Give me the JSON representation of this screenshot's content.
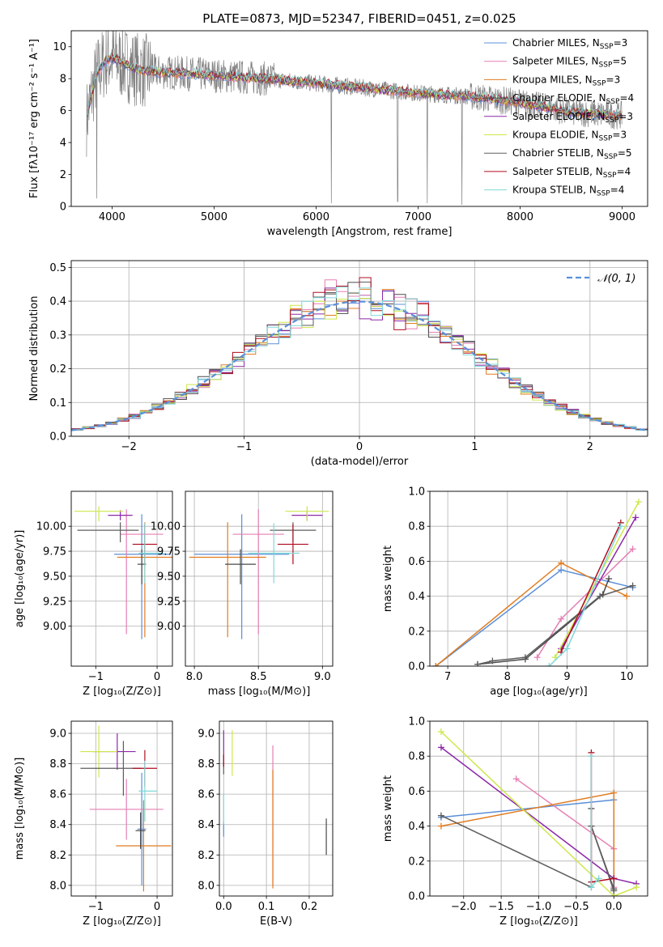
{
  "title": "PLATE=0873, MJD=52347, FIBERID=0451, z=0.025",
  "models": [
    {
      "label": "Chabrier MILES, N",
      "sub": "SSP",
      "suffix": "=3",
      "color": "#5b8fd9"
    },
    {
      "label": "Salpeter MILES, N",
      "sub": "SSP",
      "suffix": "=5",
      "color": "#e57fb3"
    },
    {
      "label": "Kroupa MILES, N",
      "sub": "SSP",
      "suffix": "=3",
      "color": "#e07c20"
    },
    {
      "label": "Chabrier ELODIE, N",
      "sub": "SSP",
      "suffix": "=4",
      "color": "#4a4a4a"
    },
    {
      "label": "Salpeter ELODIE, N",
      "sub": "SSP",
      "suffix": "=3",
      "color": "#8d28a8"
    },
    {
      "label": "Kroupa ELODIE, N",
      "sub": "SSP",
      "suffix": "=3",
      "color": "#cde84b"
    },
    {
      "label": "Chabrier STELIB, N",
      "sub": "SSP",
      "suffix": "=5",
      "color": "#5e5e5e"
    },
    {
      "label": "Salpeter STELIB, N",
      "sub": "SSP",
      "suffix": "=4",
      "color": "#b00d1f"
    },
    {
      "label": "Kroupa STELIB, N",
      "sub": "SSP",
      "suffix": "=4",
      "color": "#7fd8d8"
    }
  ],
  "chart_data": [
    {
      "id": "spectrum",
      "type": "line",
      "xlabel": "wavelength [Angstrom, rest frame]",
      "ylabel": "Flux [fλ10⁻¹⁷ erg cm⁻² s⁻¹ A⁻¹]",
      "xlim": [
        3600,
        9250
      ],
      "ylim": [
        0,
        11
      ],
      "xticks": [
        4000,
        5000,
        6000,
        7000,
        8000,
        9000
      ],
      "yticks": [
        0,
        2,
        4,
        6,
        8,
        10
      ],
      "observed_color": "#808080",
      "continuum": {
        "x": [
          3750,
          3800,
          3850,
          3900,
          3950,
          4000,
          4100,
          4200,
          4300,
          4500,
          4800,
          5000,
          5500,
          6000,
          6500,
          7000,
          7500,
          8000,
          8500,
          9000
        ],
        "y": [
          5.5,
          7.0,
          8.3,
          8.8,
          9.2,
          9.3,
          9.0,
          8.7,
          8.5,
          8.4,
          8.3,
          8.2,
          8.0,
          7.7,
          7.4,
          7.1,
          6.9,
          6.5,
          5.9,
          5.7
        ]
      },
      "spikes_down": [
        [
          6150,
          0.2
        ],
        [
          6800,
          0.3
        ],
        [
          7090,
          0.2
        ],
        [
          7430,
          0.1
        ],
        [
          3850,
          0.5
        ]
      ]
    },
    {
      "id": "residuals",
      "type": "histogram",
      "xlabel": "(data-model)/error",
      "ylabel": "Normed distribution",
      "xlim": [
        -2.5,
        2.5
      ],
      "ylim": [
        0,
        0.52
      ],
      "xticks": [
        -2,
        -1,
        0,
        1,
        2
      ],
      "yticks": [
        0.0,
        0.1,
        0.2,
        0.3,
        0.4,
        0.5
      ],
      "reference": {
        "label": "𝒩(0, 1)",
        "mu": 0,
        "sigma": 1,
        "color": "#5b8fd9"
      },
      "bin_width": 0.1
    },
    {
      "id": "age_vs_Z",
      "type": "errorbar",
      "xlabel": "Z [log₁₀(Z/Z⊙)]",
      "ylabel": "age  [log₁₀(age/yr)]",
      "xlim": [
        -1.4,
        0.25
      ],
      "ylim": [
        8.6,
        10.35
      ],
      "xticks": [
        -1,
        0
      ],
      "yticks": [
        9.0,
        9.25,
        9.5,
        9.75,
        10.0
      ],
      "points": [
        {
          "m": 0,
          "x": -0.25,
          "y": 9.72,
          "xerr": [
            0.45,
            0.45
          ],
          "yerr": [
            0.85,
            0.4
          ]
        },
        {
          "m": 1,
          "x": -0.5,
          "y": 9.92,
          "xerr": [
            0.1,
            0.6
          ],
          "yerr": [
            1.0,
            0.25
          ]
        },
        {
          "m": 2,
          "x": -0.2,
          "y": 9.69,
          "xerr": [
            0.45,
            0.45
          ],
          "yerr": [
            0.8,
            0.35
          ]
        },
        {
          "m": 3,
          "x": -0.25,
          "y": 9.62,
          "xerr": [
            0.07,
            0.07
          ],
          "yerr": [
            0.2,
            0.15
          ]
        },
        {
          "m": 4,
          "x": -0.6,
          "y": 10.11,
          "xerr": [
            0.2,
            0.2
          ],
          "yerr": [
            0.05,
            0.05
          ]
        },
        {
          "m": 5,
          "x": -0.95,
          "y": 10.15,
          "xerr": [
            0.4,
            0.4
          ],
          "yerr": [
            0.1,
            0.05
          ]
        },
        {
          "m": 6,
          "x": -0.6,
          "y": 9.96,
          "xerr": [
            0.7,
            0.3
          ],
          "yerr": [
            0.12,
            0.08
          ]
        },
        {
          "m": 7,
          "x": -0.2,
          "y": 9.82,
          "xerr": [
            0.2,
            0.2
          ],
          "yerr": [
            0.2,
            0.2
          ]
        },
        {
          "m": 8,
          "x": -0.2,
          "y": 9.73,
          "xerr": [
            0.1,
            0.3
          ],
          "yerr": [
            0.3,
            0.3
          ]
        }
      ]
    },
    {
      "id": "age_vs_mass",
      "type": "errorbar",
      "xlabel": "mass [log₁₀(M/M⊙)]",
      "ylabel": "",
      "xlim": [
        7.93,
        9.08
      ],
      "ylim": [
        8.6,
        10.35
      ],
      "xticks": [
        8.0,
        8.5,
        9.0
      ],
      "yticks": [
        9.0,
        9.25,
        9.5,
        9.75,
        10.0
      ],
      "points": [
        {
          "m": 0,
          "x": 8.37,
          "y": 9.72,
          "xerr": [
            0.37,
            0.37
          ],
          "yerr": [
            0.85,
            0.4
          ]
        },
        {
          "m": 1,
          "x": 8.5,
          "y": 9.92,
          "xerr": [
            0.2,
            0.2
          ],
          "yerr": [
            1.0,
            0.25
          ]
        },
        {
          "m": 2,
          "x": 8.26,
          "y": 9.69,
          "xerr": [
            0.3,
            0.3
          ],
          "yerr": [
            0.8,
            0.35
          ]
        },
        {
          "m": 3,
          "x": 8.36,
          "y": 9.62,
          "xerr": [
            0.12,
            0.12
          ],
          "yerr": [
            0.2,
            0.15
          ]
        },
        {
          "m": 4,
          "x": 8.88,
          "y": 10.11,
          "xerr": [
            0.12,
            0.12
          ],
          "yerr": [
            0.05,
            0.05
          ]
        },
        {
          "m": 5,
          "x": 8.88,
          "y": 10.15,
          "xerr": [
            0.17,
            0.17
          ],
          "yerr": [
            0.1,
            0.05
          ]
        },
        {
          "m": 6,
          "x": 8.77,
          "y": 9.96,
          "xerr": [
            0.18,
            0.18
          ],
          "yerr": [
            0.12,
            0.08
          ]
        },
        {
          "m": 7,
          "x": 8.77,
          "y": 9.82,
          "xerr": [
            0.12,
            0.12
          ],
          "yerr": [
            0.2,
            0.2
          ]
        },
        {
          "m": 8,
          "x": 8.62,
          "y": 9.73,
          "xerr": [
            0.2,
            0.2
          ],
          "yerr": [
            0.3,
            0.3
          ]
        }
      ]
    },
    {
      "id": "weight_vs_age",
      "type": "line",
      "xlabel": "age  [log₁₀(age/yr)]",
      "ylabel": "mass weight",
      "xlim": [
        6.7,
        10.35
      ],
      "ylim": [
        0,
        1.0
      ],
      "xticks": [
        7,
        8,
        9,
        10
      ],
      "yticks": [
        0.0,
        0.2,
        0.4,
        0.6,
        0.8,
        1.0
      ],
      "series": [
        {
          "m": 0,
          "x": [
            6.8,
            8.9,
            10.1
          ],
          "y": [
            0.0,
            0.55,
            0.45
          ]
        },
        {
          "m": 1,
          "x": [
            8.5,
            8.9,
            10.1
          ],
          "y": [
            0.05,
            0.27,
            0.67
          ]
        },
        {
          "m": 2,
          "x": [
            6.8,
            8.9,
            10.0
          ],
          "y": [
            0.0,
            0.59,
            0.4
          ]
        },
        {
          "m": 3,
          "x": [
            7.5,
            8.3,
            9.6,
            9.7
          ],
          "y": [
            0.01,
            0.04,
            0.41,
            0.5
          ]
        },
        {
          "m": 4,
          "x": [
            8.9,
            10.15
          ],
          "y": [
            0.1,
            0.85
          ]
        },
        {
          "m": 5,
          "x": [
            8.8,
            10.2
          ],
          "y": [
            0.05,
            0.94
          ]
        },
        {
          "m": 6,
          "x": [
            7.5,
            7.75,
            8.3,
            9.55,
            10.1
          ],
          "y": [
            0.01,
            0.03,
            0.05,
            0.4,
            0.46
          ]
        },
        {
          "m": 7,
          "x": [
            8.9,
            9.9
          ],
          "y": [
            0.08,
            0.82
          ]
        },
        {
          "m": 8,
          "x": [
            8.7,
            9.0,
            9.9
          ],
          "y": [
            0.0,
            0.1,
            0.8
          ]
        }
      ]
    },
    {
      "id": "mass_vs_Z",
      "type": "errorbar",
      "xlabel": "Z [log₁₀(Z/Z⊙)]",
      "ylabel": "mass [log₁₀(M/M⊙)]",
      "xlim": [
        -1.4,
        0.25
      ],
      "ylim": [
        7.93,
        9.08
      ],
      "xticks": [
        -1,
        0
      ],
      "yticks": [
        8.0,
        8.2,
        8.4,
        8.6,
        8.8,
        9.0
      ],
      "points": [
        {
          "m": 0,
          "x": -0.25,
          "y": 8.37,
          "xerr": [
            0.07,
            0.07
          ],
          "yerr": [
            0.37,
            0.37
          ]
        },
        {
          "m": 1,
          "x": -0.5,
          "y": 8.5,
          "xerr": [
            0.6,
            0.6
          ],
          "yerr": [
            0.2,
            0.2
          ]
        },
        {
          "m": 2,
          "x": -0.22,
          "y": 8.26,
          "xerr": [
            0.45,
            0.45
          ],
          "yerr": [
            0.3,
            0.3
          ]
        },
        {
          "m": 3,
          "x": -0.27,
          "y": 8.36,
          "xerr": [
            0.08,
            0.08
          ],
          "yerr": [
            0.12,
            0.12
          ]
        },
        {
          "m": 4,
          "x": -0.65,
          "y": 8.88,
          "xerr": [
            0.4,
            0.3
          ],
          "yerr": [
            0.12,
            0.12
          ]
        },
        {
          "m": 5,
          "x": -0.95,
          "y": 8.88,
          "xerr": [
            0.3,
            0.3
          ],
          "yerr": [
            0.17,
            0.17
          ]
        },
        {
          "m": 6,
          "x": -0.55,
          "y": 8.77,
          "xerr": [
            0.7,
            0.3
          ],
          "yerr": [
            0.18,
            0.18
          ]
        },
        {
          "m": 7,
          "x": -0.2,
          "y": 8.77,
          "xerr": [
            0.2,
            0.2
          ],
          "yerr": [
            0.12,
            0.12
          ]
        },
        {
          "m": 8,
          "x": -0.2,
          "y": 8.62,
          "xerr": [
            0.1,
            0.2
          ],
          "yerr": [
            0.2,
            0.2
          ]
        }
      ]
    },
    {
      "id": "mass_vs_ebv",
      "type": "errorbar",
      "xlabel": "E(B-V)",
      "ylabel": "",
      "xlim": [
        -0.01,
        0.255
      ],
      "ylim": [
        7.93,
        9.08
      ],
      "xticks": [
        0.0,
        0.1,
        0.2
      ],
      "yticks": [
        8.0,
        8.2,
        8.4,
        8.6,
        8.8,
        9.0
      ],
      "points": [
        {
          "m": 0,
          "x": 0.0,
          "y": 8.37,
          "xerr": [
            0,
            0
          ],
          "yerr": [
            0.05,
            0.05
          ]
        },
        {
          "m": 1,
          "x": 0.115,
          "y": 8.5,
          "xerr": [
            0,
            0
          ],
          "yerr": [
            0.5,
            0.42
          ]
        },
        {
          "m": 2,
          "x": 0.115,
          "y": 8.26,
          "xerr": [
            0,
            0
          ],
          "yerr": [
            0.28,
            0.5
          ]
        },
        {
          "m": 3,
          "x": 0.24,
          "y": 8.32,
          "xerr": [
            0,
            0
          ],
          "yerr": [
            0.12,
            0.12
          ]
        },
        {
          "m": 4,
          "x": 0.0,
          "y": 8.88,
          "xerr": [
            0,
            0
          ],
          "yerr": [
            0.1,
            0.14
          ]
        },
        {
          "m": 5,
          "x": 0.02,
          "y": 8.86,
          "xerr": [
            0,
            0
          ],
          "yerr": [
            0.14,
            0.16
          ]
        },
        {
          "m": 6,
          "x": 0.0,
          "y": 8.77,
          "xerr": [
            0,
            0
          ],
          "yerr": [
            0.04,
            0.04
          ]
        },
        {
          "m": 7,
          "x": 0.0,
          "y": 8.82,
          "xerr": [
            0,
            0
          ],
          "yerr": [
            0.04,
            0.04
          ]
        },
        {
          "m": 8,
          "x": 0.0,
          "y": 8.55,
          "xerr": [
            0,
            0
          ],
          "yerr": [
            0.15,
            0.05
          ]
        }
      ]
    },
    {
      "id": "weight_vs_Z",
      "type": "line",
      "xlabel": "Z [log₁₀(Z/Z⊙)]",
      "ylabel": "mass weight",
      "xlim": [
        -2.45,
        0.45
      ],
      "ylim": [
        0,
        1.0
      ],
      "xticks": [
        -2.0,
        -1.5,
        -1.0,
        -0.5,
        0.0
      ],
      "yticks": [
        0.0,
        0.2,
        0.4,
        0.6,
        0.8,
        1.0
      ],
      "series": [
        {
          "m": 0,
          "x": [
            -2.3,
            0.0
          ],
          "y": [
            0.45,
            0.55
          ]
        },
        {
          "m": 1,
          "x": [
            -1.3,
            0.0,
            0.0
          ],
          "y": [
            0.67,
            0.27,
            0.05
          ]
        },
        {
          "m": 2,
          "x": [
            -2.3,
            0.0,
            0.0
          ],
          "y": [
            0.4,
            0.59,
            0.0
          ]
        },
        {
          "m": 3,
          "x": [
            -0.3,
            -0.3,
            0.0
          ],
          "y": [
            0.5,
            0.4,
            0.04
          ]
        },
        {
          "m": 4,
          "x": [
            -2.3,
            0.0,
            0.3
          ],
          "y": [
            0.85,
            0.1,
            0.07
          ]
        },
        {
          "m": 5,
          "x": [
            -2.3,
            0.0,
            0.3
          ],
          "y": [
            0.94,
            0.0,
            0.05
          ]
        },
        {
          "m": 6,
          "x": [
            -2.3,
            -0.3,
            -0.3,
            0.0,
            0.0
          ],
          "y": [
            0.46,
            0.05,
            0.4,
            0.03,
            0.1
          ]
        },
        {
          "m": 7,
          "x": [
            -0.3,
            -0.3,
            0.0
          ],
          "y": [
            0.82,
            0.08,
            0.1
          ]
        },
        {
          "m": 8,
          "x": [
            -0.3,
            -0.3,
            -0.2
          ],
          "y": [
            0.8,
            0.05,
            0.1
          ]
        }
      ]
    }
  ]
}
